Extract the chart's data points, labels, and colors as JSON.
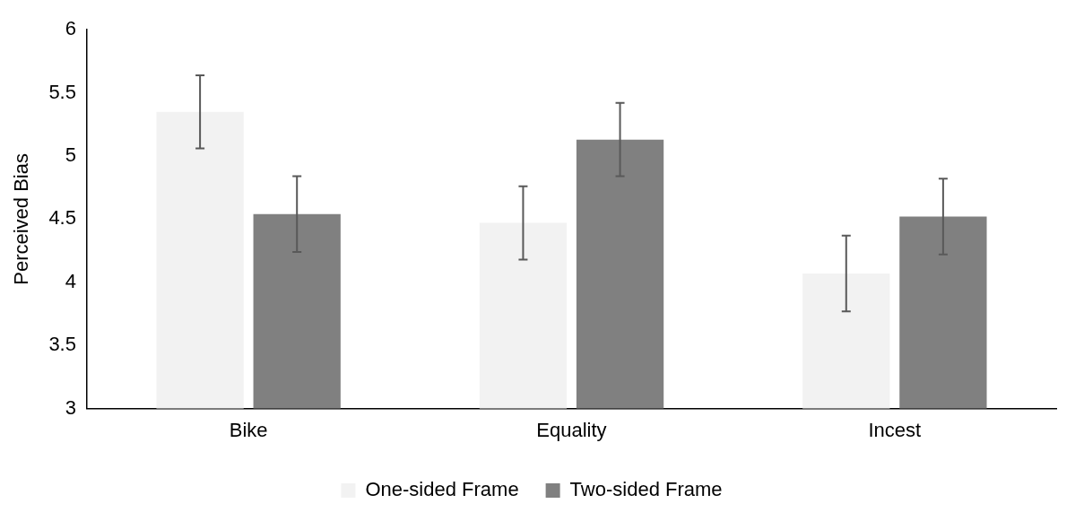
{
  "chart_data": {
    "type": "bar",
    "ylabel": "Perceived Bias",
    "categories": [
      "Bike",
      "Equality",
      "Incest"
    ],
    "series": [
      {
        "name": "One-sided Frame",
        "color": "#f2f2f2",
        "values": [
          5.35,
          4.47,
          4.07
        ],
        "errors": [
          0.29,
          0.29,
          0.3
        ]
      },
      {
        "name": "Two-sided Frame",
        "color": "#808080",
        "values": [
          4.54,
          5.13,
          4.52
        ],
        "errors": [
          0.3,
          0.29,
          0.3
        ]
      }
    ],
    "ylim": [
      3,
      6
    ],
    "yticks": [
      3,
      3.5,
      4,
      4.5,
      5,
      5.5,
      6
    ],
    "grid": false,
    "legend": "bottom"
  }
}
